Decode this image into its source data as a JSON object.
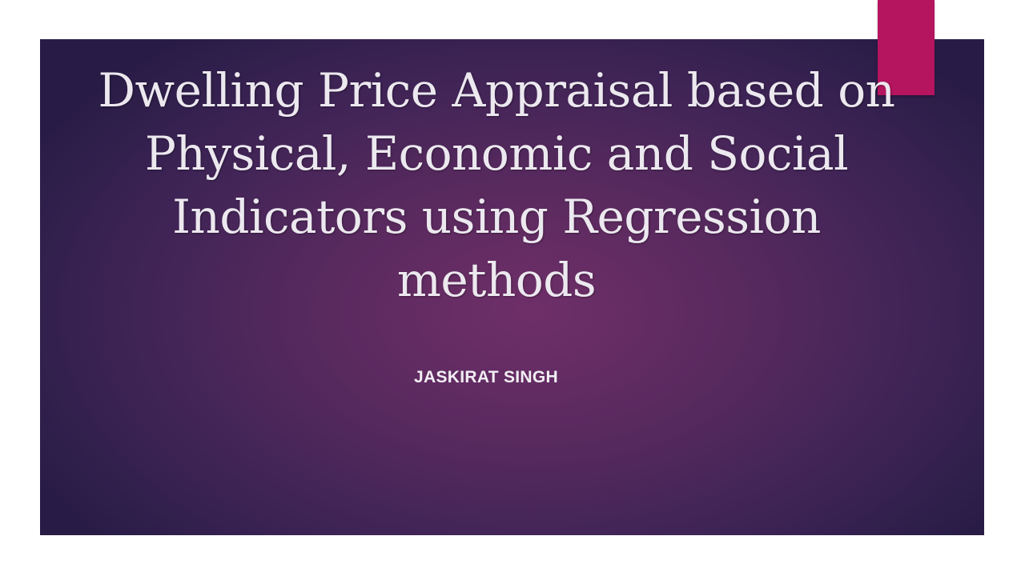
{
  "slide": {
    "title": "Dwelling Price Appraisal based on Physical, Economic and Social Indicators using Regression methods",
    "subtitle": "JASKIRAT SINGH"
  },
  "colors": {
    "accent": "#b5145f",
    "background_center": "#6f2f68",
    "background_edge": "#281c46",
    "text": "#ece8ef"
  }
}
